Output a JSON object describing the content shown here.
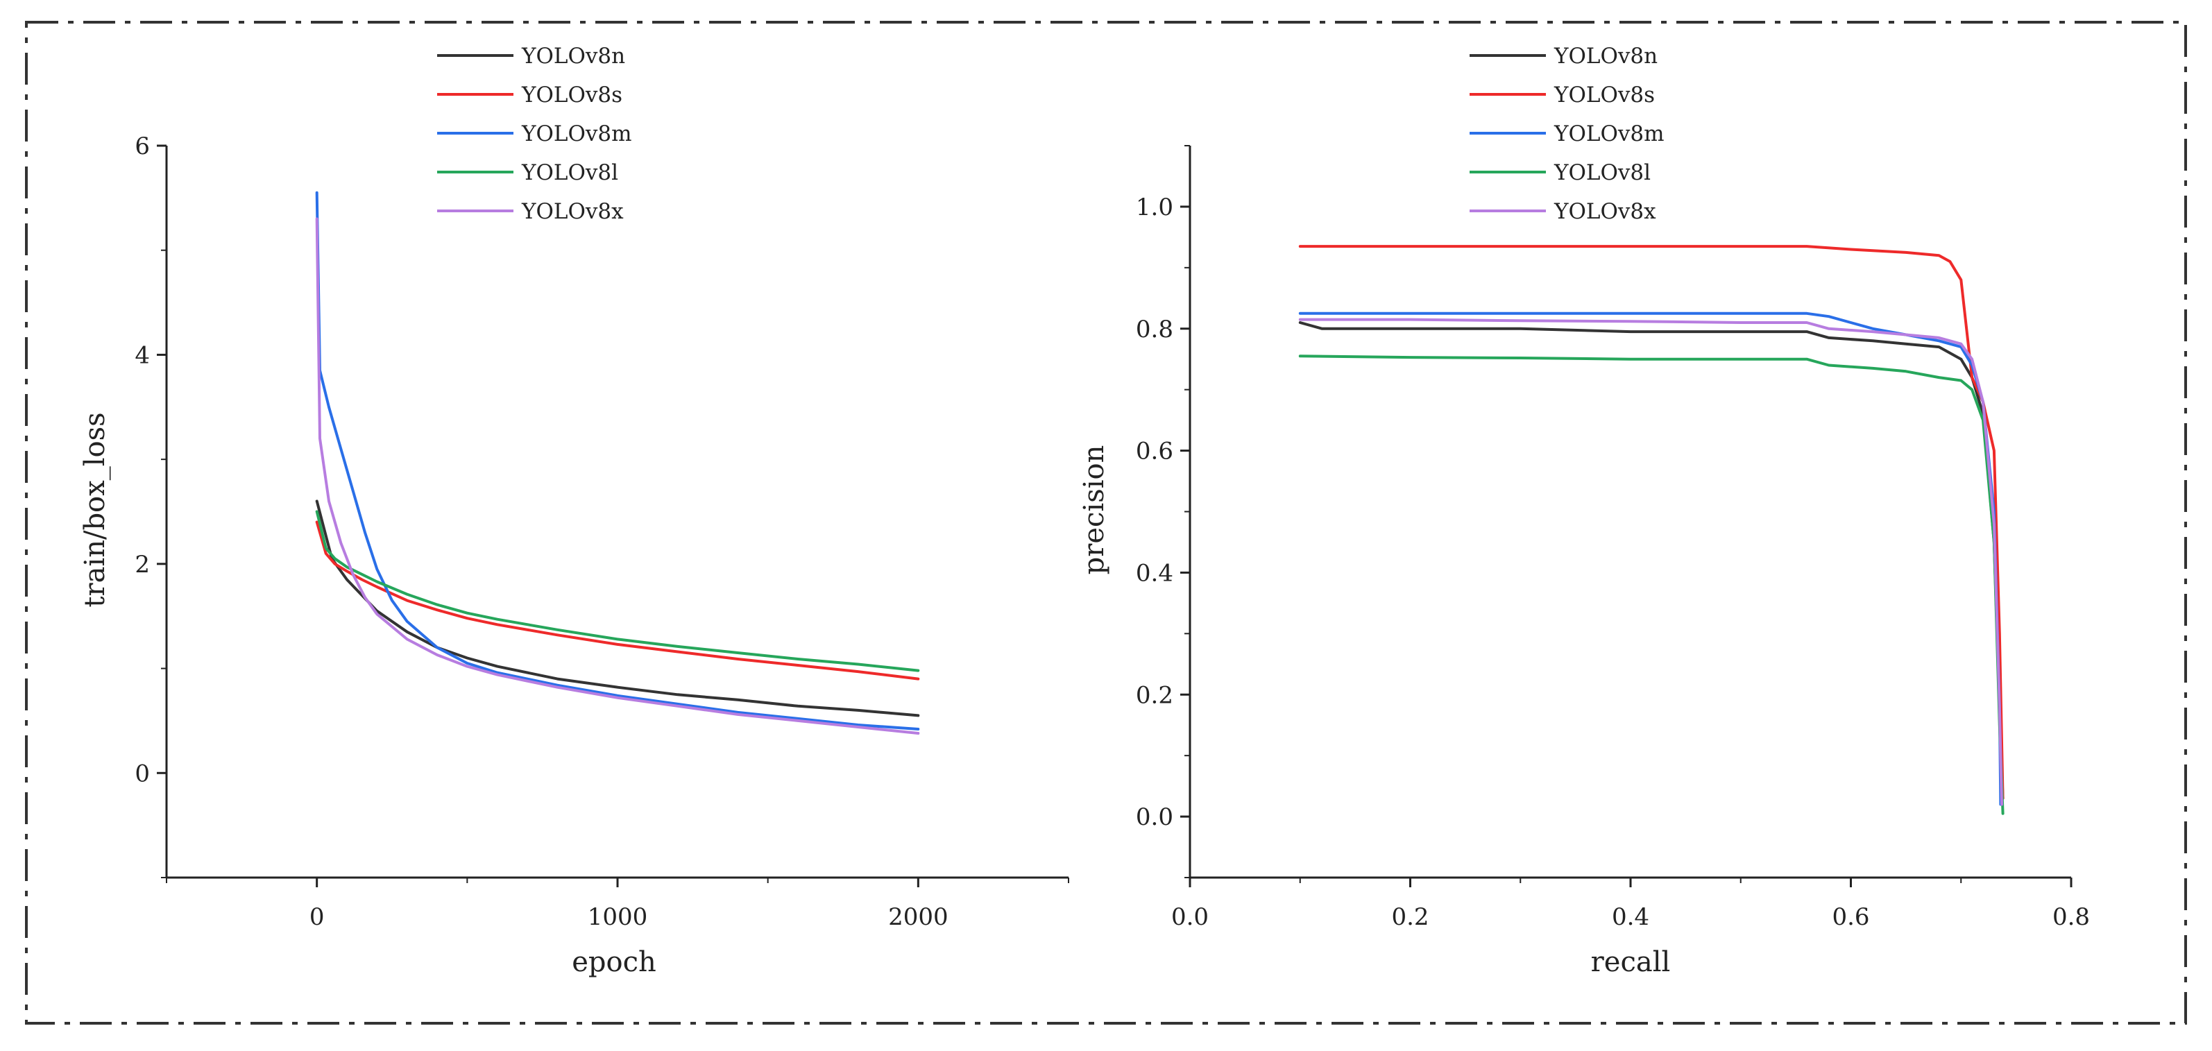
{
  "colors": {
    "frame": "#333333",
    "axis": "#222222",
    "YOLOv8n": "#333333",
    "YOLOv8s": "#ee2a2a",
    "YOLOv8m": "#2a6fe8",
    "YOLOv8l": "#26a65b",
    "YOLOv8x": "#b77de0"
  },
  "chart_data": [
    {
      "type": "line",
      "title": "",
      "xlabel": "epoch",
      "ylabel": "train/box_loss",
      "xlim": [
        -500,
        2500
      ],
      "ylim": [
        -1,
        6
      ],
      "xticks": [
        0,
        1000,
        2000
      ],
      "yticks": [
        0,
        2,
        4,
        6
      ],
      "grid": false,
      "legend_position": "top-center",
      "series": [
        {
          "name": "YOLOv8n",
          "x": [
            0,
            50,
            100,
            150,
            200,
            300,
            400,
            500,
            600,
            800,
            1000,
            1200,
            1400,
            1600,
            1800,
            2000
          ],
          "y": [
            2.6,
            2.05,
            1.85,
            1.7,
            1.55,
            1.35,
            1.2,
            1.1,
            1.02,
            0.9,
            0.82,
            0.75,
            0.7,
            0.64,
            0.6,
            0.55
          ]
        },
        {
          "name": "YOLOv8s",
          "x": [
            0,
            30,
            60,
            100,
            150,
            200,
            300,
            400,
            500,
            600,
            800,
            1000,
            1200,
            1400,
            1600,
            1800,
            2000
          ],
          "y": [
            2.4,
            2.1,
            2.0,
            1.93,
            1.85,
            1.78,
            1.65,
            1.56,
            1.48,
            1.42,
            1.32,
            1.23,
            1.16,
            1.09,
            1.03,
            0.97,
            0.9
          ]
        },
        {
          "name": "YOLOv8m",
          "x": [
            0,
            10,
            40,
            80,
            120,
            160,
            200,
            250,
            300,
            400,
            500,
            600,
            800,
            1000,
            1200,
            1400,
            1600,
            1800,
            2000
          ],
          "y": [
            5.55,
            3.85,
            3.5,
            3.1,
            2.7,
            2.3,
            1.95,
            1.65,
            1.45,
            1.2,
            1.05,
            0.96,
            0.84,
            0.74,
            0.66,
            0.58,
            0.52,
            0.46,
            0.42
          ]
        },
        {
          "name": "YOLOv8l",
          "x": [
            0,
            30,
            60,
            100,
            150,
            200,
            300,
            400,
            500,
            600,
            800,
            1000,
            1200,
            1400,
            1600,
            1800,
            2000
          ],
          "y": [
            2.5,
            2.15,
            2.05,
            1.97,
            1.9,
            1.83,
            1.71,
            1.61,
            1.53,
            1.47,
            1.37,
            1.28,
            1.21,
            1.15,
            1.09,
            1.04,
            0.98
          ]
        },
        {
          "name": "YOLOv8x",
          "x": [
            0,
            10,
            40,
            80,
            120,
            160,
            200,
            300,
            400,
            500,
            600,
            800,
            1000,
            1200,
            1400,
            1600,
            1800,
            2000
          ],
          "y": [
            5.3,
            3.2,
            2.6,
            2.2,
            1.9,
            1.68,
            1.52,
            1.28,
            1.13,
            1.02,
            0.94,
            0.82,
            0.72,
            0.64,
            0.56,
            0.5,
            0.44,
            0.38
          ]
        }
      ]
    },
    {
      "type": "line",
      "title": "",
      "xlabel": "recall",
      "ylabel": "precision",
      "xlim": [
        0.0,
        0.8
      ],
      "ylim": [
        -0.1,
        1.1
      ],
      "xticks": [
        0.0,
        0.2,
        0.4,
        0.6,
        0.8
      ],
      "yticks": [
        0.0,
        0.2,
        0.4,
        0.6,
        0.8,
        1.0
      ],
      "grid": false,
      "legend_position": "top-center",
      "series": [
        {
          "name": "YOLOv8n",
          "x": [
            0.1,
            0.12,
            0.2,
            0.3,
            0.4,
            0.5,
            0.56,
            0.58,
            0.62,
            0.65,
            0.68,
            0.7,
            0.71,
            0.72,
            0.73,
            0.735,
            0.738
          ],
          "y": [
            0.81,
            0.8,
            0.8,
            0.8,
            0.795,
            0.795,
            0.795,
            0.785,
            0.78,
            0.775,
            0.77,
            0.75,
            0.72,
            0.66,
            0.45,
            0.18,
            0.03
          ]
        },
        {
          "name": "YOLOv8s",
          "x": [
            0.1,
            0.2,
            0.3,
            0.4,
            0.5,
            0.56,
            0.6,
            0.65,
            0.68,
            0.69,
            0.7,
            0.705,
            0.71,
            0.72,
            0.73,
            0.735,
            0.738
          ],
          "y": [
            0.935,
            0.935,
            0.935,
            0.935,
            0.935,
            0.935,
            0.93,
            0.925,
            0.92,
            0.91,
            0.88,
            0.8,
            0.72,
            0.68,
            0.6,
            0.3,
            0.03
          ]
        },
        {
          "name": "YOLOv8m",
          "x": [
            0.1,
            0.2,
            0.3,
            0.4,
            0.5,
            0.56,
            0.58,
            0.6,
            0.62,
            0.65,
            0.68,
            0.7,
            0.71,
            0.72,
            0.73,
            0.735,
            0.736
          ],
          "y": [
            0.825,
            0.825,
            0.825,
            0.825,
            0.825,
            0.825,
            0.82,
            0.81,
            0.8,
            0.79,
            0.78,
            0.77,
            0.74,
            0.68,
            0.5,
            0.18,
            0.02
          ]
        },
        {
          "name": "YOLOv8l",
          "x": [
            0.1,
            0.2,
            0.3,
            0.4,
            0.5,
            0.56,
            0.58,
            0.62,
            0.65,
            0.68,
            0.7,
            0.71,
            0.72,
            0.73,
            0.735,
            0.738
          ],
          "y": [
            0.755,
            0.753,
            0.752,
            0.75,
            0.75,
            0.75,
            0.74,
            0.735,
            0.73,
            0.72,
            0.715,
            0.7,
            0.65,
            0.45,
            0.15,
            0.005
          ]
        },
        {
          "name": "YOLOv8x",
          "x": [
            0.1,
            0.2,
            0.3,
            0.4,
            0.5,
            0.56,
            0.58,
            0.62,
            0.65,
            0.68,
            0.7,
            0.71,
            0.72,
            0.73,
            0.735,
            0.737
          ],
          "y": [
            0.815,
            0.815,
            0.813,
            0.812,
            0.81,
            0.81,
            0.8,
            0.795,
            0.79,
            0.785,
            0.775,
            0.75,
            0.68,
            0.48,
            0.18,
            0.02
          ]
        }
      ]
    }
  ]
}
